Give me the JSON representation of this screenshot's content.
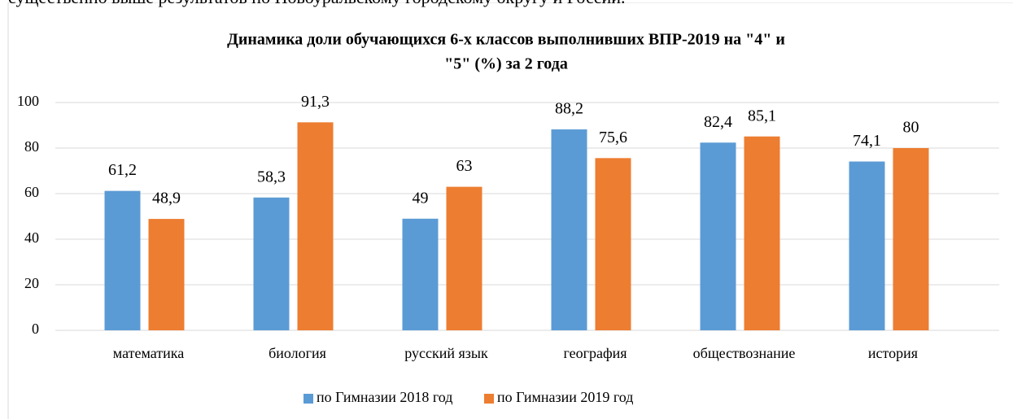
{
  "header_text": "существенно выше результатов по Новоуральскому городскому округу и России.",
  "chart_data": {
    "type": "bar",
    "title": [
      "Динамика доли обучающихся 6-х классов выполнивших ВПР-2019 на \"4\" и",
      "\"5\" (%) за 2 года"
    ],
    "categories": [
      "математика",
      "биология",
      "русский язык",
      "география",
      "обществознание",
      "история"
    ],
    "series": [
      {
        "name": "по Гимназии 2018 год",
        "color": "#5b9bd5",
        "values": [
          61.2,
          58.3,
          49,
          88.2,
          82.4,
          74.1
        ],
        "value_labels": [
          "61,2",
          "58,3",
          "49",
          "88,2",
          "82,4",
          "74,1"
        ]
      },
      {
        "name": "по Гимназии 2019 год",
        "color": "#ed7d31",
        "values": [
          48.9,
          91.3,
          63,
          75.6,
          85.1,
          80
        ],
        "value_labels": [
          "48,9",
          "91,3",
          "63",
          "75,6",
          "85,1",
          "80"
        ]
      }
    ],
    "ylim": [
      0,
      100
    ],
    "yticks": [
      0,
      20,
      40,
      60,
      80,
      100
    ],
    "grid": true,
    "legend": "bottom"
  }
}
